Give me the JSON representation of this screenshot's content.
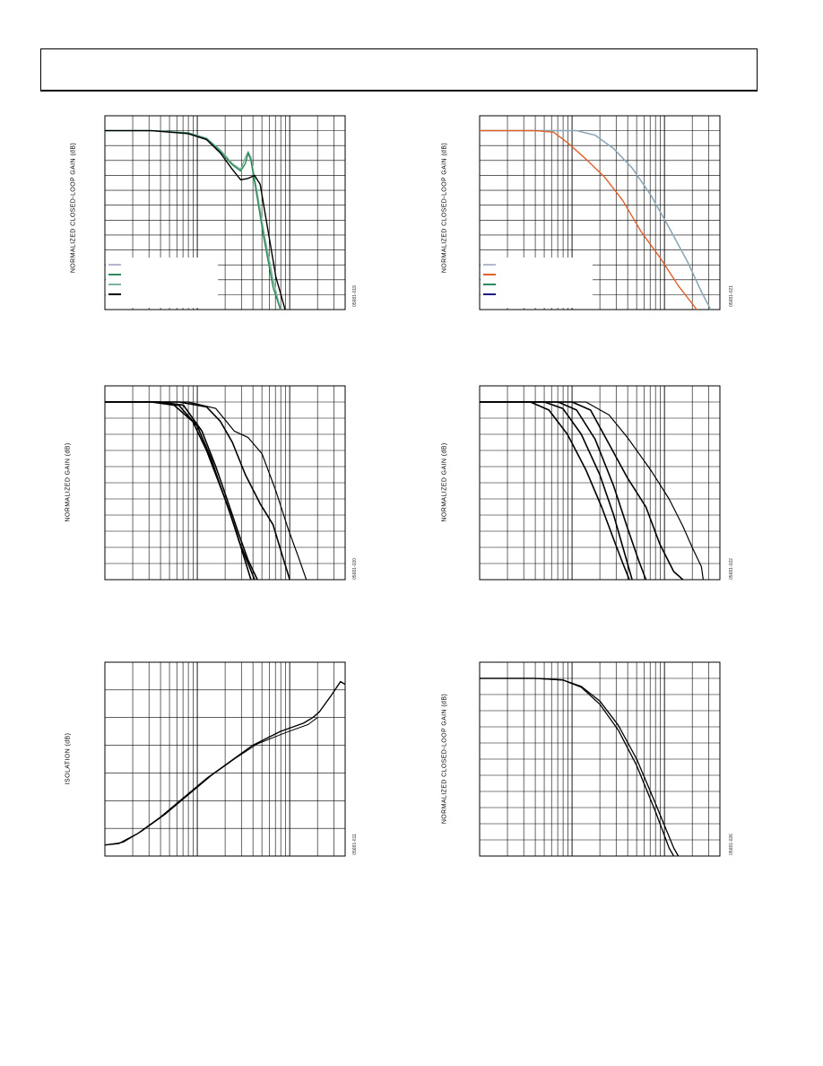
{
  "charts": [
    {
      "id": "c1",
      "type": "line",
      "ylabel": "NORMALIZED CLOSED-LOOP GAIN (dB)",
      "fig_code": "05681-019",
      "x_scale": "log",
      "x_decades": 2.6,
      "ylim": [
        -12,
        1
      ],
      "legend_colors": [
        "#b3b6cf",
        "#2a8a5a",
        "#7fb39a",
        "#000000"
      ],
      "series": [
        {
          "color": "#7fb39a",
          "width": 1.4,
          "points": [
            [
              0,
              0
            ],
            [
              0.5,
              0
            ],
            [
              0.9,
              -0.15
            ],
            [
              1.1,
              -0.5
            ],
            [
              1.25,
              -1.3
            ],
            [
              1.38,
              -2.2
            ],
            [
              1.47,
              -2.6
            ],
            [
              1.52,
              -1.8
            ],
            [
              1.55,
              -1.4
            ],
            [
              1.58,
              -1.8
            ],
            [
              1.63,
              -3.5
            ],
            [
              1.72,
              -6.8
            ],
            [
              1.82,
              -10
            ],
            [
              1.9,
              -12
            ]
          ]
        },
        {
          "color": "#2a8a5a",
          "width": 1.4,
          "points": [
            [
              0,
              0
            ],
            [
              0.5,
              0
            ],
            [
              0.9,
              -0.15
            ],
            [
              1.1,
              -0.55
            ],
            [
              1.25,
              -1.4
            ],
            [
              1.38,
              -2.3
            ],
            [
              1.47,
              -2.7
            ],
            [
              1.52,
              -2.2
            ],
            [
              1.55,
              -1.5
            ],
            [
              1.58,
              -2.0
            ],
            [
              1.63,
              -3.8
            ],
            [
              1.72,
              -7.2
            ],
            [
              1.82,
              -10.5
            ],
            [
              1.9,
              -12
            ]
          ]
        },
        {
          "color": "#000000",
          "width": 1.4,
          "points": [
            [
              0,
              0
            ],
            [
              0.5,
              0
            ],
            [
              0.9,
              -0.2
            ],
            [
              1.1,
              -0.6
            ],
            [
              1.25,
              -1.5
            ],
            [
              1.38,
              -2.6
            ],
            [
              1.47,
              -3.3
            ],
            [
              1.55,
              -3.2
            ],
            [
              1.62,
              -3.0
            ],
            [
              1.68,
              -3.6
            ],
            [
              1.76,
              -6.5
            ],
            [
              1.85,
              -9.8
            ],
            [
              1.95,
              -12
            ]
          ]
        }
      ]
    },
    {
      "id": "c2",
      "type": "line",
      "ylabel": "NORMALIZED CLOSED-LOOP GAIN (dB)",
      "fig_code": "05681-021",
      "x_scale": "log",
      "x_decades": 2.6,
      "ylim": [
        -12,
        1
      ],
      "legend_colors": [
        "#b3b6cf",
        "#e0602a",
        "#2a8a5a",
        "#1a1a80"
      ],
      "series": [
        {
          "color": "#8aa8b8",
          "width": 1.6,
          "points": [
            [
              0,
              0
            ],
            [
              0.7,
              0
            ],
            [
              1.05,
              0
            ],
            [
              1.25,
              -0.3
            ],
            [
              1.45,
              -1.2
            ],
            [
              1.65,
              -2.5
            ],
            [
              1.85,
              -4.3
            ],
            [
              2.05,
              -6.5
            ],
            [
              2.25,
              -8.8
            ],
            [
              2.4,
              -10.8
            ],
            [
              2.5,
              -12
            ]
          ]
        },
        {
          "color": "#e0602a",
          "width": 1.4,
          "points": [
            [
              0,
              0
            ],
            [
              0.6,
              0
            ],
            [
              0.8,
              -0.1
            ],
            [
              0.95,
              -0.8
            ],
            [
              1.15,
              -1.9
            ],
            [
              1.35,
              -3.1
            ],
            [
              1.55,
              -4.7
            ],
            [
              1.75,
              -6.8
            ],
            [
              1.95,
              -8.5
            ],
            [
              2.15,
              -10.4
            ],
            [
              2.35,
              -12
            ]
          ]
        }
      ]
    },
    {
      "id": "c3",
      "type": "line",
      "ylabel": "NORMALIZED GAIN (dB)",
      "fig_code": "05681-020",
      "x_scale": "log",
      "x_decades": 2.6,
      "ylim": [
        -11,
        1
      ],
      "series": [
        {
          "color": "#000000",
          "width": 1.6,
          "points": [
            [
              0,
              0
            ],
            [
              0.5,
              0
            ],
            [
              0.75,
              -0.2
            ],
            [
              0.95,
              -1.2
            ],
            [
              1.1,
              -3
            ],
            [
              1.2,
              -4.5
            ],
            [
              1.3,
              -6
            ],
            [
              1.42,
              -8
            ],
            [
              1.5,
              -9.5
            ],
            [
              1.58,
              -11
            ]
          ]
        },
        {
          "color": "#000000",
          "width": 1.6,
          "points": [
            [
              0,
              0
            ],
            [
              0.55,
              0
            ],
            [
              0.8,
              -0.2
            ],
            [
              1.0,
              -1.5
            ],
            [
              1.15,
              -3.5
            ],
            [
              1.25,
              -5.2
            ],
            [
              1.35,
              -6.8
            ],
            [
              1.45,
              -8.6
            ],
            [
              1.55,
              -10
            ],
            [
              1.62,
              -11
            ]
          ]
        },
        {
          "color": "#000000",
          "width": 1.6,
          "points": [
            [
              0,
              0
            ],
            [
              0.6,
              0
            ],
            [
              0.85,
              -0.2
            ],
            [
              1.05,
              -1.8
            ],
            [
              1.2,
              -4
            ],
            [
              1.32,
              -6
            ],
            [
              1.45,
              -8.2
            ],
            [
              1.55,
              -9.8
            ],
            [
              1.65,
              -11
            ]
          ]
        },
        {
          "color": "#000000",
          "width": 1.6,
          "points": [
            [
              0,
              0
            ],
            [
              0.8,
              0
            ],
            [
              1.1,
              -0.3
            ],
            [
              1.25,
              -1.2
            ],
            [
              1.38,
              -2.5
            ],
            [
              1.52,
              -4.5
            ],
            [
              1.68,
              -6.3
            ],
            [
              1.82,
              -7.6
            ],
            [
              1.92,
              -9.5
            ],
            [
              2.0,
              -11
            ]
          ]
        },
        {
          "color": "#000000",
          "width": 1.2,
          "points": [
            [
              0,
              0
            ],
            [
              0.9,
              0
            ],
            [
              1.2,
              -0.4
            ],
            [
              1.4,
              -1.8
            ],
            [
              1.55,
              -2.2
            ],
            [
              1.7,
              -3.2
            ],
            [
              1.85,
              -5.5
            ],
            [
              1.98,
              -7.8
            ],
            [
              2.1,
              -9.7
            ],
            [
              2.18,
              -11
            ]
          ]
        }
      ]
    },
    {
      "id": "c4",
      "type": "line",
      "ylabel": "NORMALIZED GAIN (dB)",
      "fig_code": "05681-022",
      "x_scale": "log",
      "x_decades": 2.6,
      "ylim": [
        -11,
        1
      ],
      "series": [
        {
          "color": "#000000",
          "width": 1.6,
          "points": [
            [
              0,
              0
            ],
            [
              0.55,
              0
            ],
            [
              0.75,
              -0.5
            ],
            [
              0.95,
              -2
            ],
            [
              1.15,
              -4.2
            ],
            [
              1.32,
              -6.5
            ],
            [
              1.45,
              -8.5
            ],
            [
              1.55,
              -10
            ],
            [
              1.62,
              -11
            ]
          ]
        },
        {
          "color": "#000000",
          "width": 1.6,
          "points": [
            [
              0,
              0
            ],
            [
              0.7,
              0
            ],
            [
              0.9,
              -0.4
            ],
            [
              1.1,
              -2
            ],
            [
              1.3,
              -4.5
            ],
            [
              1.45,
              -7
            ],
            [
              1.55,
              -9
            ],
            [
              1.65,
              -11
            ]
          ]
        },
        {
          "color": "#000000",
          "width": 1.6,
          "points": [
            [
              0,
              0
            ],
            [
              0.85,
              0
            ],
            [
              1.05,
              -0.5
            ],
            [
              1.25,
              -2.3
            ],
            [
              1.45,
              -5.2
            ],
            [
              1.6,
              -7.8
            ],
            [
              1.72,
              -9.8
            ],
            [
              1.8,
              -11
            ]
          ]
        },
        {
          "color": "#000000",
          "width": 1.6,
          "points": [
            [
              0,
              0
            ],
            [
              1.0,
              0
            ],
            [
              1.2,
              -0.5
            ],
            [
              1.4,
              -2.6
            ],
            [
              1.6,
              -4.7
            ],
            [
              1.8,
              -6.5
            ],
            [
              1.95,
              -8.8
            ],
            [
              2.1,
              -10.5
            ],
            [
              2.2,
              -11
            ]
          ]
        },
        {
          "color": "#000000",
          "width": 1.2,
          "points": [
            [
              0,
              0
            ],
            [
              1.15,
              0
            ],
            [
              1.4,
              -0.8
            ],
            [
              1.6,
              -2.2
            ],
            [
              1.85,
              -4.2
            ],
            [
              2.05,
              -6
            ],
            [
              2.2,
              -7.7
            ],
            [
              2.3,
              -9
            ],
            [
              2.4,
              -10.2
            ],
            [
              2.42,
              -11
            ]
          ]
        }
      ]
    },
    {
      "id": "c5",
      "type": "line",
      "ylabel": "ISOLATION (dB)",
      "fig_code": "05681-011",
      "x_scale": "log",
      "x_decades": 2.6,
      "ylim": [
        -100,
        -30
      ],
      "series": [
        {
          "color": "#000000",
          "width": 1.4,
          "points": [
            [
              0,
              -96
            ],
            [
              0.15,
              -95.5
            ],
            [
              0.35,
              -92
            ],
            [
              0.6,
              -86
            ],
            [
              0.85,
              -79
            ],
            [
              1.1,
              -72
            ],
            [
              1.35,
              -66
            ],
            [
              1.6,
              -60
            ],
            [
              1.9,
              -55
            ],
            [
              2.15,
              -52
            ],
            [
              2.25,
              -50
            ],
            [
              2.32,
              -48
            ],
            [
              2.45,
              -42
            ],
            [
              2.55,
              -37
            ],
            [
              2.6,
              -38
            ]
          ]
        },
        {
          "color": "#000000",
          "width": 1.0,
          "points": [
            [
              0,
              -96
            ],
            [
              0.2,
              -95
            ],
            [
              0.4,
              -91
            ],
            [
              0.65,
              -85
            ],
            [
              0.9,
              -78
            ],
            [
              1.15,
              -71
            ],
            [
              1.4,
              -65
            ],
            [
              1.65,
              -59.5
            ],
            [
              1.95,
              -55.5
            ],
            [
              2.2,
              -52.5
            ],
            [
              2.3,
              -50
            ]
          ]
        }
      ]
    },
    {
      "id": "c6",
      "type": "line",
      "ylabel": "NORMALIZED CLOSED-LOOP GAIN (dB)",
      "fig_code": "05681-026",
      "x_scale": "log",
      "x_decades": 2.6,
      "ylim": [
        -11,
        1
      ],
      "series": [
        {
          "color": "#000000",
          "width": 1.3,
          "points": [
            [
              0,
              0
            ],
            [
              0.6,
              0
            ],
            [
              0.9,
              -0.1
            ],
            [
              1.1,
              -0.5
            ],
            [
              1.3,
              -1.4
            ],
            [
              1.5,
              -2.9
            ],
            [
              1.7,
              -5
            ],
            [
              1.9,
              -7.7
            ],
            [
              2.1,
              -10.5
            ],
            [
              2.15,
              -11
            ]
          ]
        },
        {
          "color": "#000000",
          "width": 1.3,
          "points": [
            [
              0,
              0
            ],
            [
              0.6,
              0
            ],
            [
              0.9,
              -0.1
            ],
            [
              1.1,
              -0.55
            ],
            [
              1.3,
              -1.6
            ],
            [
              1.5,
              -3.2
            ],
            [
              1.7,
              -5.4
            ],
            [
              1.9,
              -8.2
            ],
            [
              2.05,
              -10.5
            ],
            [
              2.1,
              -11
            ]
          ]
        }
      ]
    }
  ]
}
